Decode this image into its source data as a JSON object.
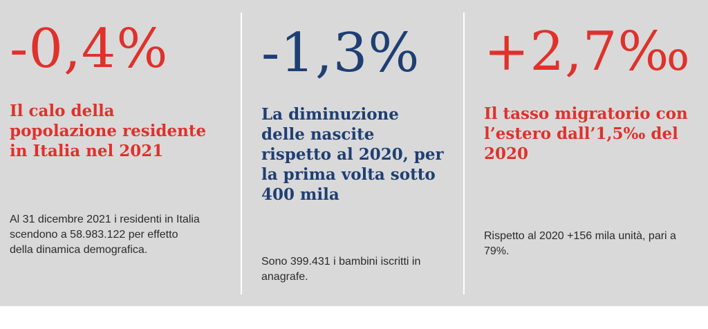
{
  "colors": {
    "accent_red": "#e0312b",
    "accent_navy": "#1f3f73",
    "panel_bg": "#d9d9d9"
  },
  "stats": [
    {
      "value": "-0,4%",
      "headline": "Il calo della\npopolazione residente\nin Italia nel 2021",
      "body": "Al 31 dicembre 2021 i residenti in Italia\nscendono a 58.983.122 per effetto\ndella dinamica demografica."
    },
    {
      "value": "-1,3%",
      "headline": "La diminuzione\ndelle nascite\nrispetto al 2020, per\nla prima volta sotto\n400 mila",
      "body": "Sono 399.431 i bambini iscritti in\nanagrafe."
    },
    {
      "value": "+2,7‰",
      "headline": "Il tasso migratorio con\nl’estero dall’1,5‰ del\n2020",
      "body": "Rispetto al 2020 +156 mila unità,  pari a\n79%."
    }
  ]
}
